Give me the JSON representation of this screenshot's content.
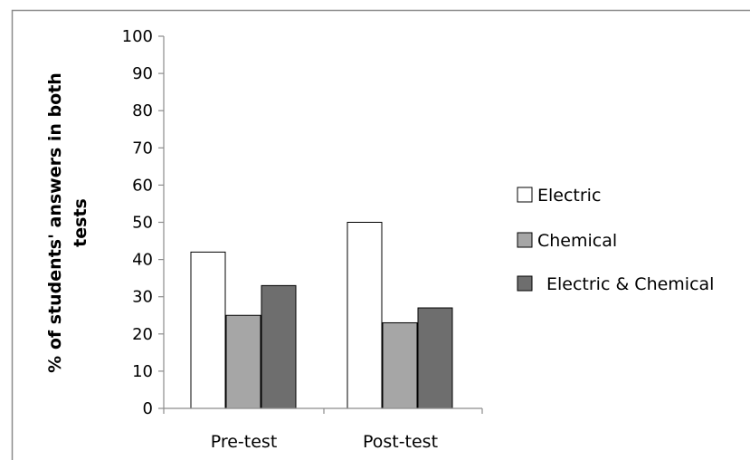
{
  "chart_data": {
    "type": "bar",
    "categories": [
      "Pre-test",
      "Post-test"
    ],
    "series": [
      {
        "name": "Electric",
        "values": [
          42,
          50
        ],
        "color": "#ffffff"
      },
      {
        "name": "Chemical",
        "values": [
          25,
          23
        ],
        "color": "#a6a6a6"
      },
      {
        "name": "Electric & Chemical",
        "values": [
          33,
          27
        ],
        "color": "#6e6e6e"
      }
    ],
    "title": "",
    "xlabel": "",
    "ylabel_lines": [
      "% of students' answers in both",
      "tests"
    ],
    "ylim": [
      0,
      100
    ],
    "yticks": [
      0,
      10,
      20,
      30,
      40,
      50,
      60,
      70,
      80,
      90,
      100
    ],
    "grid": false,
    "legend_position": "right"
  }
}
